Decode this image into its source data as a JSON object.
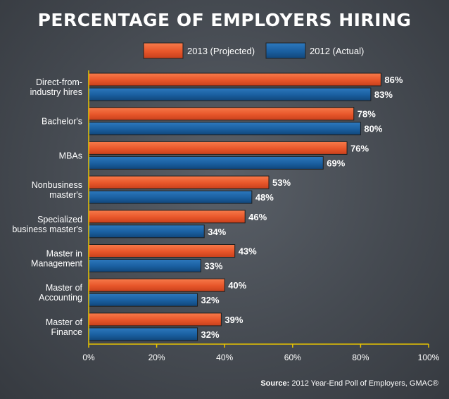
{
  "chart_data": {
    "type": "bar",
    "orientation": "horizontal",
    "title": "PERCENTAGE OF EMPLOYERS HIRING",
    "categories": [
      [
        "Direct-from-",
        "industry hires"
      ],
      [
        "Bachelor's"
      ],
      [
        "MBAs"
      ],
      [
        "Nonbusiness",
        "master's"
      ],
      [
        "Specialized",
        "business master's"
      ],
      [
        "Master in",
        "Management"
      ],
      [
        "Master of",
        "Accounting"
      ],
      [
        "Master of",
        "Finance"
      ]
    ],
    "series": [
      {
        "name": "2013 (Projected)",
        "color": "#e8562a",
        "values": [
          86,
          78,
          76,
          53,
          46,
          43,
          40,
          39
        ]
      },
      {
        "name": "2012 (Actual)",
        "color": "#1a5fa0",
        "values": [
          83,
          80,
          69,
          48,
          34,
          33,
          32,
          32
        ]
      }
    ],
    "value_suffix": "%",
    "xlim": [
      0,
      100
    ],
    "xticks": [
      "0%",
      "20%",
      "40%",
      "60%",
      "80%",
      "100%"
    ],
    "axis_color": "#e8c400",
    "legend_position": "top-center",
    "grid": false
  },
  "source": {
    "label": "Source:",
    "text": " 2012 Year-End Poll of Employers, GMAC®"
  }
}
